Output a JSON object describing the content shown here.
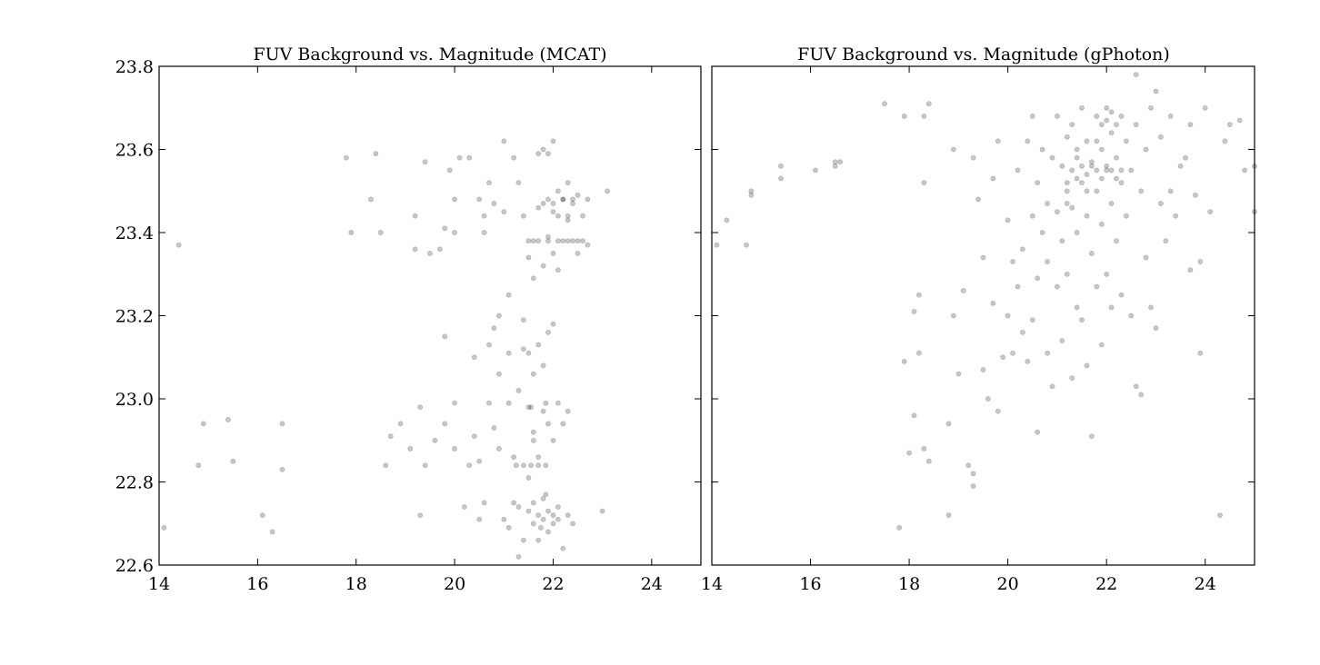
{
  "chart_data": [
    {
      "type": "scatter",
      "title": "FUV Background vs. Magnitude (MCAT)",
      "xlabel": "",
      "ylabel": "",
      "xlim": [
        14,
        25
      ],
      "ylim": [
        22.6,
        23.8
      ],
      "xticks": [
        14,
        16,
        18,
        20,
        22,
        24
      ],
      "yticks": [
        22.6,
        22.8,
        23.0,
        23.2,
        23.4,
        23.6,
        23.8
      ],
      "xtick_labels": [
        "14",
        "16",
        "18",
        "20",
        "22",
        "24"
      ],
      "ytick_labels": [
        "22.6",
        "22.8",
        "23.0",
        "23.2",
        "23.4",
        "23.6",
        "23.8"
      ],
      "grid": false,
      "legend": "none",
      "marker_color": "#000000",
      "marker_alpha": 0.22,
      "points": [
        [
          14.1,
          22.69
        ],
        [
          14.4,
          23.37
        ],
        [
          14.8,
          22.84
        ],
        [
          14.9,
          22.94
        ],
        [
          15.4,
          22.95
        ],
        [
          15.5,
          22.85
        ],
        [
          16.1,
          22.72
        ],
        [
          16.3,
          22.68
        ],
        [
          16.5,
          22.83
        ],
        [
          16.5,
          22.94
        ],
        [
          17.8,
          23.58
        ],
        [
          17.9,
          23.4
        ],
        [
          18.3,
          23.48
        ],
        [
          18.4,
          23.59
        ],
        [
          18.5,
          23.4
        ],
        [
          18.6,
          22.84
        ],
        [
          18.7,
          22.91
        ],
        [
          18.9,
          22.94
        ],
        [
          19.1,
          22.88
        ],
        [
          19.2,
          23.44
        ],
        [
          19.2,
          23.36
        ],
        [
          19.3,
          22.98
        ],
        [
          19.3,
          22.72
        ],
        [
          19.4,
          22.84
        ],
        [
          19.4,
          23.57
        ],
        [
          19.5,
          23.35
        ],
        [
          19.6,
          22.9
        ],
        [
          19.7,
          23.36
        ],
        [
          19.8,
          23.15
        ],
        [
          19.8,
          22.94
        ],
        [
          19.8,
          23.41
        ],
        [
          19.9,
          23.55
        ],
        [
          20.0,
          22.99
        ],
        [
          20.0,
          22.88
        ],
        [
          20.0,
          23.48
        ],
        [
          20.0,
          23.4
        ],
        [
          20.1,
          23.58
        ],
        [
          20.2,
          22.74
        ],
        [
          20.3,
          23.58
        ],
        [
          20.3,
          22.84
        ],
        [
          20.4,
          23.1
        ],
        [
          20.4,
          22.91
        ],
        [
          20.5,
          23.48
        ],
        [
          20.5,
          22.71
        ],
        [
          20.5,
          22.85
        ],
        [
          20.6,
          23.4
        ],
        [
          20.6,
          23.44
        ],
        [
          20.6,
          22.75
        ],
        [
          20.7,
          22.99
        ],
        [
          20.7,
          23.52
        ],
        [
          20.7,
          23.13
        ],
        [
          20.8,
          23.47
        ],
        [
          20.8,
          23.17
        ],
        [
          20.8,
          22.93
        ],
        [
          20.9,
          23.2
        ],
        [
          20.9,
          23.06
        ],
        [
          20.9,
          22.88
        ],
        [
          21.0,
          23.62
        ],
        [
          21.0,
          22.71
        ],
        [
          21.0,
          23.45
        ],
        [
          21.1,
          23.25
        ],
        [
          21.1,
          23.11
        ],
        [
          21.1,
          22.99
        ],
        [
          21.1,
          22.69
        ],
        [
          21.2,
          22.86
        ],
        [
          21.2,
          22.75
        ],
        [
          21.2,
          23.58
        ],
        [
          21.3,
          23.52
        ],
        [
          21.3,
          23.02
        ],
        [
          21.3,
          22.62
        ],
        [
          21.4,
          23.44
        ],
        [
          21.4,
          23.19
        ],
        [
          21.4,
          22.66
        ],
        [
          21.5,
          23.34
        ],
        [
          21.5,
          23.11
        ],
        [
          21.5,
          22.98
        ],
        [
          21.5,
          22.81
        ],
        [
          21.6,
          23.38
        ],
        [
          21.6,
          23.29
        ],
        [
          21.6,
          23.06
        ],
        [
          21.6,
          22.92
        ],
        [
          21.6,
          22.7
        ],
        [
          21.7,
          23.59
        ],
        [
          21.7,
          23.46
        ],
        [
          21.7,
          23.13
        ],
        [
          21.7,
          22.86
        ],
        [
          21.7,
          22.66
        ],
        [
          21.8,
          23.6
        ],
        [
          21.8,
          23.32
        ],
        [
          21.8,
          23.08
        ],
        [
          21.8,
          22.97
        ],
        [
          21.8,
          22.76
        ],
        [
          21.9,
          23.59
        ],
        [
          21.9,
          23.48
        ],
        [
          21.9,
          23.39
        ],
        [
          21.9,
          23.16
        ],
        [
          21.9,
          22.94
        ],
        [
          21.9,
          22.68
        ],
        [
          22.0,
          23.62
        ],
        [
          22.0,
          23.45
        ],
        [
          22.0,
          23.35
        ],
        [
          22.0,
          23.18
        ],
        [
          22.0,
          22.9
        ],
        [
          22.0,
          22.72
        ],
        [
          22.1,
          23.5
        ],
        [
          22.1,
          23.31
        ],
        [
          22.1,
          22.99
        ],
        [
          22.1,
          22.74
        ],
        [
          22.2,
          23.48
        ],
        [
          22.2,
          23.38
        ],
        [
          22.2,
          22.94
        ],
        [
          22.2,
          22.64
        ],
        [
          22.3,
          23.52
        ],
        [
          22.3,
          23.43
        ],
        [
          22.3,
          22.97
        ],
        [
          22.3,
          22.72
        ],
        [
          22.4,
          23.47
        ],
        [
          22.4,
          23.38
        ],
        [
          22.4,
          22.7
        ],
        [
          22.5,
          23.49
        ],
        [
          22.5,
          23.35
        ],
        [
          22.6,
          23.44
        ],
        [
          22.6,
          23.38
        ],
        [
          22.7,
          23.48
        ],
        [
          22.7,
          23.37
        ],
        [
          23.0,
          22.73
        ],
        [
          23.1,
          23.5
        ],
        [
          21.25,
          22.84
        ],
        [
          21.4,
          22.84
        ],
        [
          21.55,
          22.84
        ],
        [
          21.7,
          22.84
        ],
        [
          21.85,
          22.84
        ],
        [
          21.3,
          22.74
        ],
        [
          21.5,
          22.73
        ],
        [
          21.7,
          22.72
        ],
        [
          21.8,
          22.71
        ],
        [
          21.9,
          22.73
        ],
        [
          22.0,
          22.7
        ],
        [
          21.6,
          22.75
        ],
        [
          21.75,
          22.69
        ],
        [
          21.85,
          22.77
        ],
        [
          22.1,
          22.71
        ],
        [
          21.5,
          23.38
        ],
        [
          21.7,
          23.38
        ],
        [
          21.9,
          23.38
        ],
        [
          22.1,
          23.38
        ],
        [
          22.3,
          23.38
        ],
        [
          22.5,
          23.38
        ],
        [
          21.8,
          23.47
        ],
        [
          22.0,
          23.47
        ],
        [
          22.2,
          23.48
        ],
        [
          22.4,
          23.48
        ],
        [
          22.1,
          23.44
        ],
        [
          22.3,
          23.44
        ],
        [
          21.4,
          23.12
        ],
        [
          21.55,
          22.98
        ],
        [
          21.6,
          22.9
        ],
        [
          21.85,
          22.99
        ]
      ]
    },
    {
      "type": "scatter",
      "title": "FUV Background vs. Magnitude (gPhoton)",
      "xlabel": "",
      "ylabel": "",
      "xlim": [
        14,
        25
      ],
      "ylim": [
        22.6,
        23.8
      ],
      "xticks": [
        14,
        16,
        18,
        20,
        22,
        24
      ],
      "yticks": [
        22.6,
        22.8,
        23.0,
        23.2,
        23.4,
        23.6,
        23.8
      ],
      "xtick_labels": [
        "14",
        "16",
        "18",
        "20",
        "22",
        "24"
      ],
      "ytick_labels": [],
      "grid": false,
      "legend": "none",
      "marker_color": "#000000",
      "marker_alpha": 0.22,
      "points": [
        [
          14.1,
          23.37
        ],
        [
          14.3,
          23.43
        ],
        [
          14.7,
          23.37
        ],
        [
          14.8,
          23.49
        ],
        [
          14.8,
          23.5
        ],
        [
          15.4,
          23.56
        ],
        [
          15.4,
          23.53
        ],
        [
          16.1,
          23.55
        ],
        [
          16.5,
          23.57
        ],
        [
          16.5,
          23.56
        ],
        [
          16.6,
          23.57
        ],
        [
          17.5,
          23.71
        ],
        [
          17.8,
          22.69
        ],
        [
          17.9,
          23.68
        ],
        [
          17.9,
          23.09
        ],
        [
          18.0,
          22.87
        ],
        [
          18.1,
          23.21
        ],
        [
          18.1,
          22.96
        ],
        [
          18.2,
          23.25
        ],
        [
          18.2,
          23.11
        ],
        [
          18.3,
          23.52
        ],
        [
          18.3,
          22.88
        ],
        [
          18.3,
          23.68
        ],
        [
          18.4,
          23.71
        ],
        [
          18.4,
          22.85
        ],
        [
          18.8,
          22.94
        ],
        [
          18.8,
          22.72
        ],
        [
          18.9,
          23.6
        ],
        [
          18.9,
          23.2
        ],
        [
          19.0,
          23.06
        ],
        [
          19.1,
          23.26
        ],
        [
          19.2,
          22.84
        ],
        [
          19.3,
          23.58
        ],
        [
          19.3,
          22.79
        ],
        [
          19.3,
          22.82
        ],
        [
          19.4,
          23.48
        ],
        [
          19.5,
          23.07
        ],
        [
          19.5,
          23.34
        ],
        [
          19.6,
          23.0
        ],
        [
          19.7,
          23.53
        ],
        [
          19.7,
          23.23
        ],
        [
          19.8,
          23.62
        ],
        [
          19.8,
          22.97
        ],
        [
          19.9,
          23.1
        ],
        [
          20.0,
          23.43
        ],
        [
          20.0,
          23.2
        ],
        [
          20.1,
          23.33
        ],
        [
          20.1,
          23.11
        ],
        [
          20.2,
          23.55
        ],
        [
          20.2,
          23.27
        ],
        [
          20.3,
          23.36
        ],
        [
          20.3,
          23.16
        ],
        [
          20.4,
          23.62
        ],
        [
          20.4,
          23.09
        ],
        [
          20.5,
          23.68
        ],
        [
          20.5,
          23.44
        ],
        [
          20.5,
          23.19
        ],
        [
          20.6,
          23.52
        ],
        [
          20.6,
          23.29
        ],
        [
          20.6,
          22.92
        ],
        [
          20.7,
          23.6
        ],
        [
          20.7,
          23.4
        ],
        [
          20.8,
          23.47
        ],
        [
          20.8,
          23.33
        ],
        [
          20.8,
          23.11
        ],
        [
          20.9,
          23.58
        ],
        [
          20.9,
          23.03
        ],
        [
          21.0,
          23.68
        ],
        [
          21.0,
          23.45
        ],
        [
          21.0,
          23.27
        ],
        [
          21.1,
          23.56
        ],
        [
          21.1,
          23.38
        ],
        [
          21.1,
          23.14
        ],
        [
          21.2,
          23.63
        ],
        [
          21.2,
          23.5
        ],
        [
          21.2,
          23.3
        ],
        [
          21.3,
          23.66
        ],
        [
          21.3,
          23.46
        ],
        [
          21.3,
          23.05
        ],
        [
          21.4,
          23.58
        ],
        [
          21.4,
          23.4
        ],
        [
          21.4,
          23.22
        ],
        [
          21.5,
          23.7
        ],
        [
          21.5,
          23.52
        ],
        [
          21.5,
          23.19
        ],
        [
          21.6,
          23.62
        ],
        [
          21.6,
          23.44
        ],
        [
          21.6,
          23.08
        ],
        [
          21.7,
          23.56
        ],
        [
          21.7,
          23.35
        ],
        [
          21.7,
          22.91
        ],
        [
          21.8,
          23.68
        ],
        [
          21.8,
          23.5
        ],
        [
          21.8,
          23.27
        ],
        [
          21.9,
          23.6
        ],
        [
          21.9,
          23.42
        ],
        [
          21.9,
          23.13
        ],
        [
          22.0,
          23.7
        ],
        [
          22.0,
          23.55
        ],
        [
          22.0,
          23.3
        ],
        [
          22.1,
          23.64
        ],
        [
          22.1,
          23.47
        ],
        [
          22.1,
          23.22
        ],
        [
          22.2,
          23.58
        ],
        [
          22.2,
          23.38
        ],
        [
          22.3,
          23.68
        ],
        [
          22.3,
          23.52
        ],
        [
          22.3,
          23.25
        ],
        [
          22.4,
          23.62
        ],
        [
          22.4,
          23.44
        ],
        [
          22.5,
          23.55
        ],
        [
          22.5,
          23.2
        ],
        [
          22.6,
          23.78
        ],
        [
          22.6,
          23.66
        ],
        [
          22.6,
          23.03
        ],
        [
          22.7,
          23.5
        ],
        [
          22.7,
          23.01
        ],
        [
          22.8,
          23.6
        ],
        [
          22.8,
          23.34
        ],
        [
          22.9,
          23.7
        ],
        [
          22.9,
          23.22
        ],
        [
          23.0,
          23.74
        ],
        [
          23.0,
          23.17
        ],
        [
          23.1,
          23.47
        ],
        [
          23.1,
          23.63
        ],
        [
          23.2,
          23.38
        ],
        [
          23.3,
          23.68
        ],
        [
          23.3,
          23.5
        ],
        [
          23.4,
          23.44
        ],
        [
          23.5,
          23.56
        ],
        [
          23.6,
          23.58
        ],
        [
          23.7,
          23.66
        ],
        [
          23.7,
          23.31
        ],
        [
          23.8,
          23.49
        ],
        [
          23.9,
          23.11
        ],
        [
          23.9,
          23.33
        ],
        [
          24.0,
          23.7
        ],
        [
          24.1,
          23.45
        ],
        [
          24.3,
          22.72
        ],
        [
          24.4,
          23.62
        ],
        [
          24.5,
          23.66
        ],
        [
          24.7,
          23.67
        ],
        [
          24.8,
          23.55
        ],
        [
          25.0,
          23.56
        ],
        [
          25.0,
          23.45
        ],
        [
          21.2,
          23.52
        ],
        [
          21.3,
          23.55
        ],
        [
          21.4,
          23.53
        ],
        [
          21.5,
          23.56
        ],
        [
          21.6,
          23.54
        ],
        [
          21.7,
          23.57
        ],
        [
          21.8,
          23.55
        ],
        [
          21.9,
          23.53
        ],
        [
          22.0,
          23.56
        ],
        [
          22.1,
          23.55
        ],
        [
          22.2,
          23.53
        ],
        [
          22.3,
          23.55
        ],
        [
          21.9,
          23.66
        ],
        [
          22.0,
          23.67
        ],
        [
          22.1,
          23.69
        ],
        [
          22.2,
          23.66
        ],
        [
          21.8,
          23.62
        ],
        [
          21.6,
          23.5
        ],
        [
          21.4,
          23.6
        ],
        [
          21.2,
          23.47
        ]
      ]
    }
  ]
}
